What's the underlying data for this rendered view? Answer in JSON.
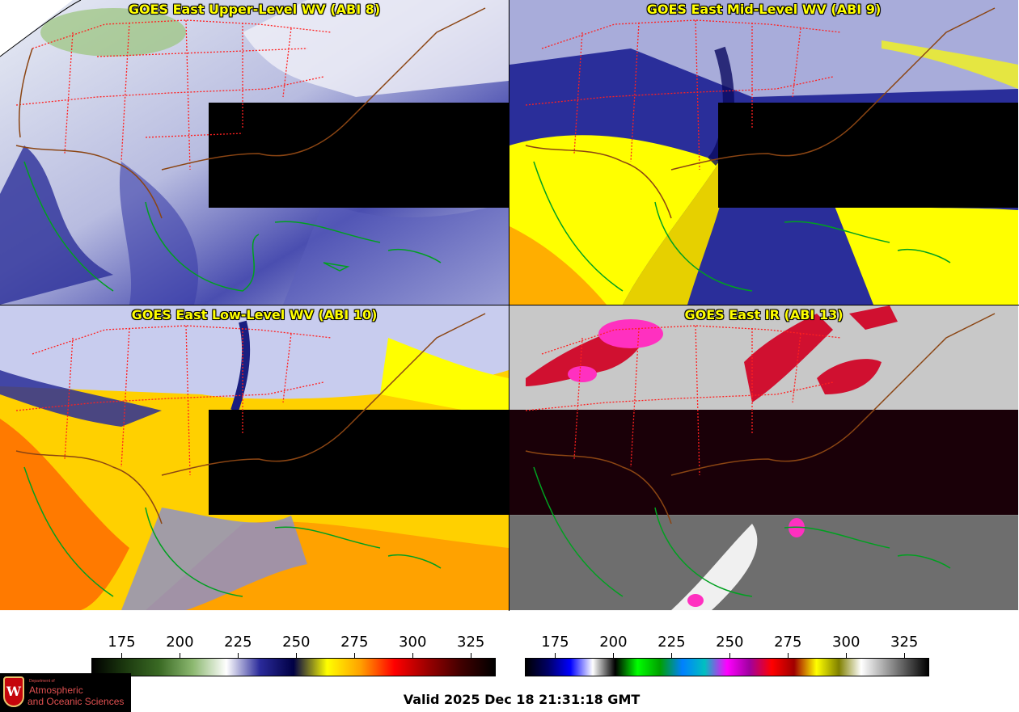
{
  "panels": [
    {
      "title": "GOES East Upper-Level WV (ABI 8)",
      "product": "water-vapor-upper"
    },
    {
      "title": "GOES East Mid-Level WV (ABI 9)",
      "product": "water-vapor-mid"
    },
    {
      "title": "GOES East Low-Level WV (ABI 10)",
      "product": "water-vapor-low"
    },
    {
      "title": "GOES East IR (ABI 13)",
      "product": "infrared"
    }
  ],
  "colorbars": {
    "wv": {
      "ticks": [
        "175",
        "200",
        "225",
        "250",
        "275",
        "300",
        "325"
      ],
      "range": [
        162,
        335
      ],
      "stops": [
        "#000000",
        "#1c3a0f",
        "#3a6a24",
        "#8cb870",
        "#ffffff",
        "#2a2a9a",
        "#000044",
        "#ffff00",
        "#ffa000",
        "#ff0000",
        "#9a0000",
        "#400000",
        "#000000"
      ]
    },
    "ir": {
      "ticks": [
        "175",
        "200",
        "225",
        "250",
        "275",
        "300",
        "325"
      ],
      "range": [
        162,
        335
      ],
      "stops": [
        "#000000",
        "#000066",
        "#0000ff",
        "#ffffff",
        "#000000",
        "#00ff00",
        "#00a000",
        "#0080ff",
        "#00c0c0",
        "#ff00ff",
        "#a000a0",
        "#ff0000",
        "#a00000",
        "#ffff00",
        "#808000",
        "#ffffff",
        "#aaaaaa",
        "#555555",
        "#000000"
      ]
    }
  },
  "valid_time": "Valid 2025 Dec 18 21:31:18 GMT",
  "logo": {
    "shield_letter": "W",
    "dept": "Department of",
    "line1": "Atmospheric",
    "line2": "and Oceanic Sciences"
  }
}
